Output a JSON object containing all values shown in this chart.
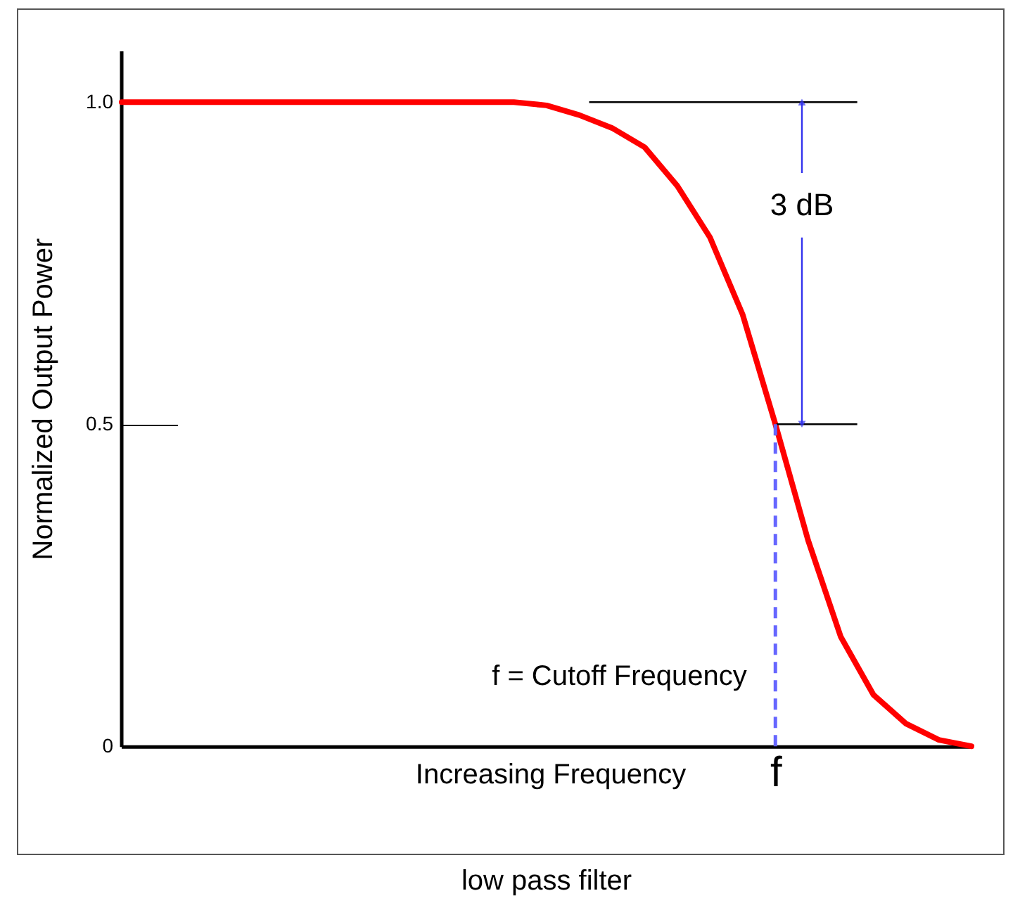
{
  "chart_data": {
    "type": "line",
    "title": "low pass filter",
    "xlabel": "Increasing Frequency",
    "ylabel": "Normalized Output Power",
    "categories": [
      null,
      null,
      null,
      null,
      null,
      null,
      null,
      null,
      null,
      null,
      null,
      null,
      null,
      null,
      null,
      null,
      null,
      null,
      null,
      null,
      "f",
      null,
      null,
      null,
      null,
      null,
      null
    ],
    "series": [
      {
        "color": "#ff0000",
        "values": [
          1,
          1,
          1,
          1,
          1,
          1,
          1,
          1,
          1,
          1,
          1,
          1,
          1,
          0.995,
          0.98,
          0.96,
          0.93,
          0.87,
          0.79,
          0.67,
          0.5,
          0.32,
          0.17,
          0.08,
          0.035,
          0.01,
          0
        ]
      }
    ],
    "ylim": [
      0,
      1.08
    ],
    "yticks": [
      0,
      0.5,
      {
        "value": 1,
        "label": "1.0"
      }
    ],
    "ref_lines": [
      {
        "axis": "y",
        "value": 1,
        "color": "#000000"
      },
      {
        "axis": "y",
        "value": 0.5,
        "color": "#000000"
      },
      {
        "axis": "x",
        "value": "f",
        "color": "#6666ff",
        "line_style": "dashed"
      }
    ],
    "annotations": [
      "3 dB",
      "f = Cutoff Frequency"
    ],
    "grid": false,
    "marker": "none",
    "line_style": "solid"
  }
}
